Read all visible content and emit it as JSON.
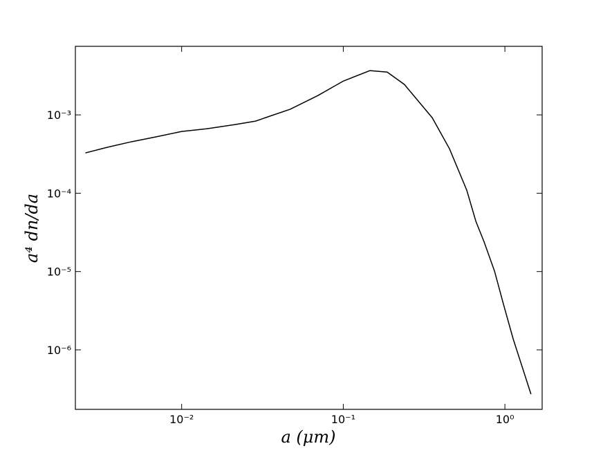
{
  "chart_data": {
    "type": "line",
    "x_label": "a (μm)",
    "y_label": "a⁴ dn/da",
    "xscale": "log",
    "yscale": "log",
    "x": [
      0.00254,
      0.00345,
      0.00487,
      0.00687,
      0.01,
      0.0144,
      0.0214,
      0.0287,
      0.035,
      0.047,
      0.0698,
      0.1,
      0.146,
      0.187,
      0.239,
      0.355,
      0.454,
      0.581,
      0.661,
      0.744,
      0.863,
      0.98,
      1.125,
      1.45
    ],
    "series": [
      {
        "color": "#000000",
        "values": [
          0.000327,
          0.000385,
          0.000453,
          0.000522,
          0.000614,
          0.000666,
          0.000752,
          0.000833,
          0.00096,
          0.00118,
          0.00177,
          0.0027,
          0.00367,
          0.00352,
          0.00244,
          0.00092,
          0.00037,
          0.000109,
          4.38e-05,
          2.38e-05,
          1.01e-05,
          3.82e-06,
          1.38e-06,
          2.72e-07
        ]
      }
    ],
    "xlim": [
      0.0022,
      1.7
    ],
    "ylim": [
      1.74e-07,
      0.0075
    ],
    "xticks": [
      {
        "value": 0.01,
        "label": "10⁻²"
      },
      {
        "value": 0.1,
        "label": "10⁻¹"
      },
      {
        "value": 1,
        "label": "10⁰"
      }
    ],
    "yticks": [
      {
        "value": 1e-06,
        "label": "10⁻⁶"
      },
      {
        "value": 1e-05,
        "label": "10⁻⁵"
      },
      {
        "value": 0.0001,
        "label": "10⁻⁴"
      },
      {
        "value": 0.001,
        "label": "10⁻³"
      }
    ]
  }
}
